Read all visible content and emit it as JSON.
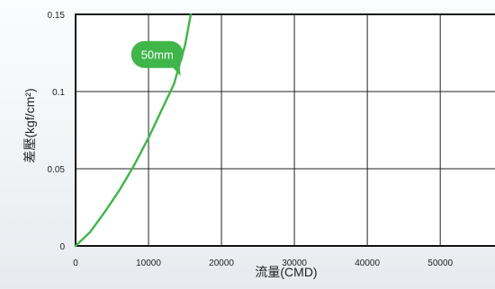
{
  "chart_data": {
    "type": "line",
    "title": "",
    "xlabel": "流量(CMD)",
    "ylabel": "差壓(kgf/cm²)",
    "xlim": [
      0,
      58000
    ],
    "ylim": [
      0,
      0.15
    ],
    "x_ticks": [
      0,
      10000,
      20000,
      30000,
      40000,
      50000
    ],
    "x_tick_labels": [
      "0",
      "10000",
      "20000",
      "30000",
      "40000",
      "50000"
    ],
    "y_ticks": [
      0,
      0.05,
      0.1,
      0.15
    ],
    "y_tick_labels": [
      "0",
      "0.05",
      "0.1",
      "0.15"
    ],
    "grid": true,
    "series": [
      {
        "name": "50mm",
        "color": "#3fb54a",
        "x": [
          0,
          2000,
          4000,
          6000,
          8000,
          10000,
          12000,
          13500,
          15000,
          15800
        ],
        "y": [
          0,
          0.009,
          0.022,
          0.036,
          0.052,
          0.07,
          0.09,
          0.105,
          0.13,
          0.15
        ]
      }
    ],
    "annotations": [
      {
        "text": "50mm",
        "x": 11200,
        "y": 0.124,
        "color": "#3fb54a"
      }
    ]
  }
}
